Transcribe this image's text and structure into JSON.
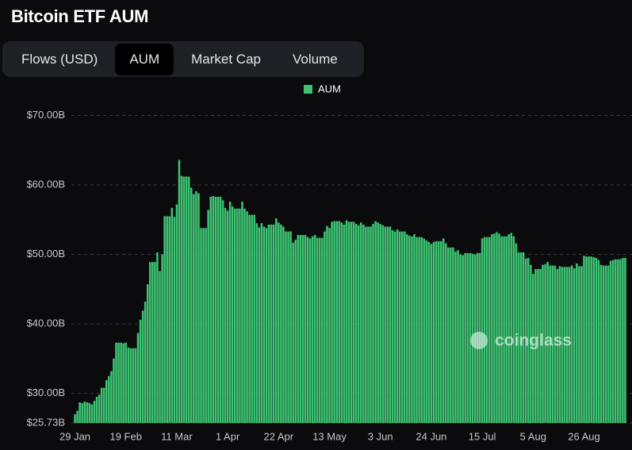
{
  "header": {
    "title": "Bitcoin ETF AUM",
    "tabs": [
      "Flows (USD)",
      "AUM",
      "Market Cap",
      "Volume"
    ],
    "active_tab": 1
  },
  "watermark": "coinglass",
  "chart_data": {
    "type": "bar",
    "legend": "top",
    "grid": true,
    "series": [
      {
        "name": "AUM",
        "color": "#3dc271",
        "values": [
          27.0,
          27.5,
          28.7,
          28.6,
          28.8,
          28.7,
          28.6,
          28.4,
          28.9,
          29.5,
          29.8,
          30.8,
          30.8,
          31.9,
          32.5,
          33.2,
          35.0,
          37.3,
          37.3,
          37.3,
          37.2,
          37.3,
          36.6,
          36.5,
          36.5,
          36.5,
          38.7,
          40.6,
          41.9,
          43.2,
          45.7,
          48.9,
          48.9,
          48.9,
          50.3,
          47.6,
          50.0,
          55.5,
          55.5,
          55.5,
          56.7,
          55.4,
          57.2,
          63.6,
          61.3,
          61.2,
          61.2,
          61.2,
          59.6,
          58.7,
          59.1,
          58.8,
          53.8,
          53.8,
          53.8,
          56.4,
          58.3,
          58.4,
          58.3,
          58.3,
          58.3,
          57.8,
          56.7,
          56.3,
          57.6,
          56.9,
          56.6,
          56.6,
          56.6,
          57.6,
          56.6,
          56.2,
          55.7,
          55.7,
          55.7,
          54.5,
          53.9,
          54.5,
          54.0,
          53.8,
          54.3,
          54.3,
          54.3,
          55.2,
          54.6,
          54.3,
          54.0,
          53.3,
          53.3,
          53.3,
          51.7,
          52.1,
          52.8,
          52.8,
          52.8,
          52.8,
          52.5,
          52.3,
          52.6,
          52.8,
          52.4,
          52.4,
          52.4,
          53.3,
          54.1,
          53.8,
          54.7,
          54.8,
          54.8,
          54.8,
          54.6,
          54.3,
          54.9,
          54.7,
          54.7,
          54.7,
          54.4,
          54.2,
          54.6,
          54.3,
          54.0,
          54.0,
          54.0,
          54.4,
          54.8,
          54.6,
          54.4,
          54.2,
          54.0,
          54.0,
          54.0,
          53.5,
          53.3,
          53.6,
          53.3,
          53.3,
          53.3,
          52.9,
          52.7,
          52.6,
          52.9,
          52.5,
          52.5,
          52.5,
          52.3,
          52.0,
          51.8,
          51.5,
          51.8,
          51.9,
          51.9,
          51.9,
          52.3,
          51.6,
          51.0,
          51.0,
          51.0,
          50.4,
          50.6,
          50.0,
          49.9,
          50.2,
          50.2,
          50.2,
          50.1,
          50.0,
          50.2,
          50.2,
          52.3,
          52.5,
          52.5,
          52.5,
          52.9,
          53.0,
          53.2,
          53.0,
          52.6,
          52.6,
          52.6,
          52.9,
          53.1,
          52.6,
          51.6,
          50.3,
          50.3,
          50.3,
          49.4,
          49.5,
          48.5,
          47.2,
          47.9,
          47.9,
          47.9,
          48.5,
          48.6,
          48.9,
          48.4,
          48.4,
          48.4,
          47.9,
          48.3,
          48.2,
          48.2,
          48.2,
          48.2,
          48.4,
          48.0,
          48.7,
          48.3,
          48.3,
          49.8,
          49.7,
          49.7,
          49.7,
          49.6,
          49.5,
          49.2,
          48.5,
          48.4,
          48.4,
          48.4,
          49.1,
          49.2,
          49.3,
          49.3,
          49.3,
          49.5,
          49.5
        ]
      }
    ],
    "categories": [
      "29 Jan",
      null,
      null,
      null,
      null,
      null,
      null,
      null,
      null,
      null,
      null,
      null,
      null,
      null,
      null,
      null,
      null,
      null,
      null,
      null,
      null,
      "19 Feb",
      null,
      null,
      null,
      null,
      null,
      null,
      null,
      null,
      null,
      null,
      null,
      null,
      null,
      null,
      null,
      null,
      null,
      null,
      null,
      null,
      "11 Mar",
      null,
      null,
      null,
      null,
      null,
      null,
      null,
      null,
      null,
      null,
      null,
      null,
      null,
      null,
      null,
      null,
      null,
      null,
      null,
      null,
      "1 Apr",
      null,
      null,
      null,
      null,
      null,
      null,
      null,
      null,
      null,
      null,
      null,
      null,
      null,
      null,
      null,
      null,
      null,
      null,
      null,
      null,
      "22 Apr",
      null,
      null,
      null,
      null,
      null,
      null,
      null,
      null,
      null,
      null,
      null,
      null,
      null,
      null,
      null,
      null,
      null,
      null,
      null,
      null,
      "13 May",
      null,
      null,
      null,
      null,
      null,
      null,
      null,
      null,
      null,
      null,
      null,
      null,
      null,
      null,
      null,
      null,
      null,
      null,
      null,
      null,
      "3 Jun",
      null,
      null,
      null,
      null,
      null,
      null,
      null,
      null,
      null,
      null,
      null,
      null,
      null,
      null,
      null,
      null,
      null,
      null,
      null,
      null,
      "24 Jun",
      null,
      null,
      null,
      null,
      null,
      null,
      null,
      null,
      null,
      null,
      null,
      null,
      null,
      null,
      null,
      null,
      null,
      null,
      null,
      null,
      "15 Jul",
      null,
      null,
      null,
      null,
      null,
      null,
      null,
      null,
      null,
      null,
      null,
      null,
      null,
      null,
      null,
      null,
      null,
      null,
      null,
      null,
      "5 Aug",
      null,
      null,
      null,
      null,
      null,
      null,
      null,
      null,
      null,
      null,
      null,
      null,
      null,
      null,
      null,
      null,
      null,
      null,
      null,
      null,
      "26 Aug",
      null,
      null,
      null,
      null,
      null,
      null,
      null,
      null,
      null,
      null,
      null,
      null,
      null,
      null,
      null,
      null,
      null
    ],
    "ylim": [
      25.73,
      72
    ],
    "yticks": [
      {
        "value": 25.73,
        "label": "$25.73B"
      },
      {
        "value": 30,
        "label": "$30.00B"
      },
      {
        "value": 40,
        "label": "$40.00B"
      },
      {
        "value": 50,
        "label": "$50.00B"
      },
      {
        "value": 60,
        "label": "$60.00B"
      },
      {
        "value": 70,
        "label": "$70.00B"
      }
    ]
  }
}
